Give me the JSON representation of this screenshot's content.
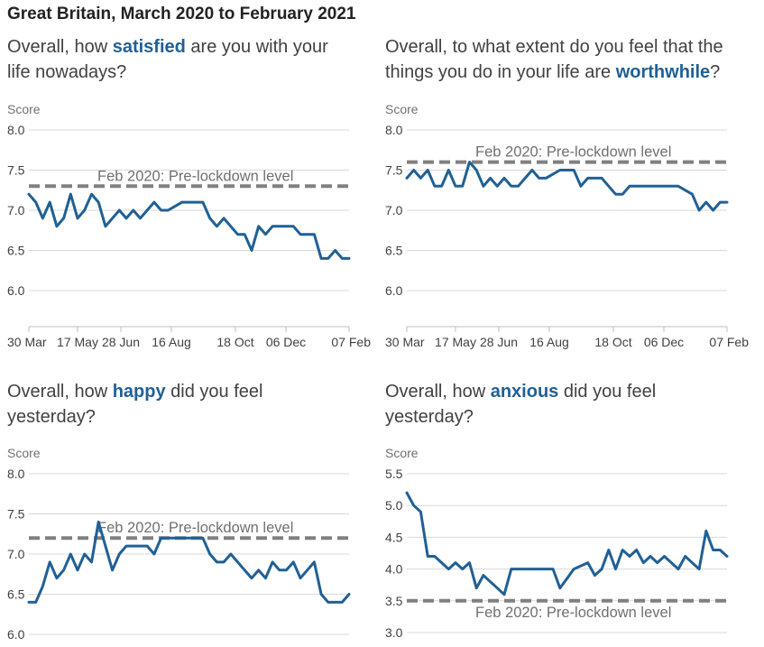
{
  "page": {
    "title": "Great Britain, March 2020 to February 2021"
  },
  "theme": {
    "series_color": "#206095",
    "reference_color": "#808080"
  },
  "chart_data": [
    {
      "type": "line",
      "question": {
        "before": "Overall, how ",
        "highlight": "satisfied",
        "after": " are you with your",
        "line2": "life nowadays?"
      },
      "unit_label": "Score",
      "ylim": [
        6.0,
        8.0
      ],
      "yticks": [
        "8.0",
        "7.5",
        "7.0",
        "6.5",
        "6.0"
      ],
      "x_tick_labels": [
        "30 Mar",
        "17 May",
        "28 Jun",
        "16 Aug",
        "18 Oct",
        "06 Dec",
        "07 Feb"
      ],
      "reference": {
        "label": "Feb 2020: Pre-lockdown level",
        "value": 7.3
      },
      "series": [
        {
          "values": [
            7.2,
            7.1,
            6.9,
            7.1,
            6.8,
            6.9,
            7.2,
            6.9,
            7.0,
            7.2,
            7.1,
            6.8,
            6.9,
            7.0,
            6.9,
            7.0,
            6.9,
            7.0,
            7.1,
            7.0,
            7.0,
            7.05,
            7.1,
            7.1,
            7.1,
            7.1,
            6.9,
            6.8,
            6.9,
            6.8,
            6.7,
            6.7,
            6.5,
            6.8,
            6.7,
            6.8,
            6.8,
            6.8,
            6.8,
            6.7,
            6.7,
            6.7,
            6.4,
            6.4,
            6.5,
            6.4,
            6.4
          ]
        }
      ]
    },
    {
      "type": "line",
      "question": {
        "before": "Overall, to what extent do you feel that the",
        "line2_before": "things you do in your life are ",
        "highlight": "worthwhile",
        "after": "?"
      },
      "unit_label": "Score",
      "ylim": [
        6.0,
        8.0
      ],
      "yticks": [
        "8.0",
        "7.5",
        "7.0",
        "6.5",
        "6.0"
      ],
      "x_tick_labels": [
        "30 Mar",
        "17 May",
        "28 Jun",
        "16 Aug",
        "18 Oct",
        "06 Dec",
        "07 Feb"
      ],
      "reference": {
        "label": "Feb 2020: Pre-lockdown level",
        "value": 7.6
      },
      "series": [
        {
          "values": [
            7.4,
            7.5,
            7.4,
            7.5,
            7.3,
            7.3,
            7.5,
            7.3,
            7.3,
            7.6,
            7.5,
            7.3,
            7.4,
            7.3,
            7.4,
            7.3,
            7.3,
            7.4,
            7.5,
            7.4,
            7.4,
            7.45,
            7.5,
            7.5,
            7.5,
            7.3,
            7.4,
            7.4,
            7.4,
            7.3,
            7.2,
            7.2,
            7.3,
            7.3,
            7.3,
            7.3,
            7.3,
            7.3,
            7.3,
            7.3,
            7.25,
            7.2,
            7.0,
            7.1,
            7.0,
            7.1,
            7.1
          ]
        }
      ]
    },
    {
      "type": "line",
      "question": {
        "before": "Overall, how ",
        "highlight": "happy",
        "after": " did you feel",
        "line2": "yesterday?"
      },
      "unit_label": "Score",
      "ylim": [
        6.0,
        8.0
      ],
      "yticks": [
        "8.0",
        "7.5",
        "7.0",
        "6.5",
        "6.0"
      ],
      "x_tick_labels": [],
      "reference": {
        "label": "Feb 2020: Pre-lockdown level",
        "value": 7.2
      },
      "series": [
        {
          "values": [
            6.4,
            6.4,
            6.6,
            6.9,
            6.7,
            6.8,
            7.0,
            6.8,
            7.0,
            6.9,
            7.4,
            7.1,
            6.8,
            7.0,
            7.1,
            7.1,
            7.1,
            7.1,
            7.0,
            7.2,
            7.2,
            7.2,
            7.2,
            7.2,
            7.2,
            7.2,
            7.0,
            6.9,
            6.9,
            7.0,
            6.9,
            6.8,
            6.7,
            6.8,
            6.7,
            6.9,
            6.8,
            6.8,
            6.9,
            6.7,
            6.8,
            6.9,
            6.5,
            6.4,
            6.4,
            6.4,
            6.5
          ]
        }
      ]
    },
    {
      "type": "line",
      "question": {
        "before": "Overall, how ",
        "highlight": "anxious",
        "after": " did you feel",
        "line2": "yesterday?"
      },
      "unit_label": "Score",
      "ylim": [
        3.0,
        5.5
      ],
      "yticks": [
        "5.5",
        "5.0",
        "4.5",
        "4.0",
        "3.5",
        "3.0"
      ],
      "x_tick_labels": [],
      "reference": {
        "label": "Feb 2020: Pre-lockdown level",
        "value": 3.5
      },
      "series": [
        {
          "values": [
            5.2,
            5.0,
            4.9,
            4.2,
            4.2,
            4.1,
            4.0,
            4.1,
            4.0,
            4.1,
            3.7,
            3.9,
            3.8,
            3.7,
            3.6,
            4.0,
            4.0,
            4.0,
            4.0,
            4.0,
            4.0,
            4.0,
            3.7,
            3.85,
            4.0,
            4.05,
            4.1,
            3.9,
            4.0,
            4.3,
            4.0,
            4.3,
            4.2,
            4.3,
            4.1,
            4.2,
            4.1,
            4.2,
            4.1,
            4.0,
            4.2,
            4.1,
            4.0,
            4.6,
            4.3,
            4.3,
            4.2
          ]
        }
      ]
    }
  ]
}
